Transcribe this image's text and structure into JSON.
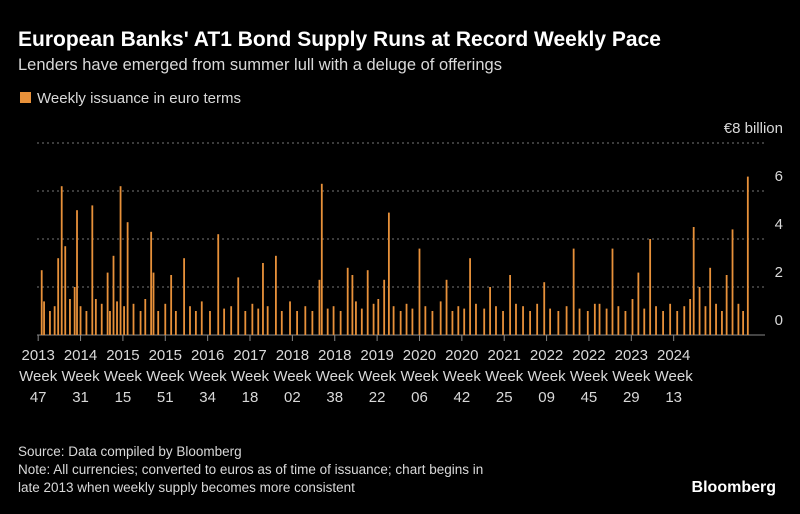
{
  "chart_data": {
    "type": "bar",
    "title": "European Banks' AT1 Bond Supply Runs at Record Weekly Pace",
    "subtitle": "Lenders have emerged from summer lull with a deluge of offerings",
    "source": "Source: Data compiled by Bloomberg",
    "note": [
      "Note: All currencies; converted to euros as of time of issuance; chart begins in",
      "late 2013 when weekly supply becomes more consistent"
    ],
    "brand": "Bloomberg",
    "grid": true,
    "xlim": [
      -1,
      604
    ],
    "xticks": [
      {
        "value": 0,
        "label": [
          "2013",
          "Week",
          "47"
        ]
      },
      {
        "value": 36,
        "label": [
          "2014",
          "Week",
          "31"
        ]
      },
      {
        "value": 72,
        "label": [
          "2015",
          "Week",
          "15"
        ]
      },
      {
        "value": 108,
        "label": [
          "2015",
          "Week",
          "51"
        ]
      },
      {
        "value": 144,
        "label": [
          "2016",
          "Week",
          "34"
        ]
      },
      {
        "value": 180,
        "label": [
          "2017",
          "Week",
          "18"
        ]
      },
      {
        "value": 216,
        "label": [
          "2018",
          "Week",
          "02"
        ]
      },
      {
        "value": 252,
        "label": [
          "2018",
          "Week",
          "38"
        ]
      },
      {
        "value": 288,
        "label": [
          "2019",
          "Week",
          "22"
        ]
      },
      {
        "value": 324,
        "label": [
          "2020",
          "Week",
          "06"
        ]
      },
      {
        "value": 360,
        "label": [
          "2020",
          "Week",
          "42"
        ]
      },
      {
        "value": 396,
        "label": [
          "2021",
          "Week",
          "25"
        ]
      },
      {
        "value": 432,
        "label": [
          "2022",
          "Week",
          "09"
        ]
      },
      {
        "value": 468,
        "label": [
          "2022",
          "Week",
          "45"
        ]
      },
      {
        "value": 504,
        "label": [
          "2023",
          "Week",
          "29"
        ]
      },
      {
        "value": 540,
        "label": [
          "2024",
          "Week",
          "13"
        ]
      }
    ],
    "ylim": [
      0,
      8
    ],
    "yticks": [
      0,
      2,
      4,
      6,
      {
        "value": 8,
        "label": "€8 billion"
      }
    ],
    "x": [
      3,
      5,
      10,
      14,
      17,
      20,
      23,
      27,
      31,
      33,
      36,
      41,
      46,
      49,
      54,
      59,
      61,
      64,
      67,
      70,
      73,
      76,
      81,
      87,
      91,
      96,
      98,
      102,
      108,
      113,
      117,
      124,
      129,
      134,
      139,
      146,
      153,
      158,
      164,
      170,
      176,
      182,
      187,
      191,
      195,
      202,
      207,
      214,
      220,
      227,
      233,
      239,
      241,
      246,
      251,
      257,
      263,
      267,
      270,
      275,
      280,
      285,
      289,
      294,
      298,
      302,
      308,
      313,
      318,
      324,
      329,
      335,
      342,
      347,
      352,
      357,
      362,
      367,
      372,
      379,
      384,
      389,
      395,
      401,
      406,
      412,
      418,
      424,
      430,
      435,
      442,
      449,
      455,
      460,
      467,
      473,
      477,
      483,
      488,
      493,
      499,
      505,
      510,
      515,
      520,
      525,
      531,
      537,
      543,
      549,
      554,
      557,
      562,
      567,
      571,
      576,
      581,
      585,
      590,
      595,
      599,
      603
    ],
    "series": [
      {
        "name": "Weekly issuance in euro terms",
        "color": "#e8913a",
        "values": [
          2.7,
          1.4,
          1.0,
          1.2,
          3.2,
          6.2,
          3.7,
          1.5,
          2.0,
          5.2,
          1.2,
          1.0,
          5.4,
          1.5,
          1.3,
          2.6,
          1.0,
          3.3,
          1.4,
          6.2,
          1.2,
          4.7,
          1.3,
          1.0,
          1.5,
          4.3,
          2.6,
          1.0,
          1.3,
          2.5,
          1.0,
          3.2,
          1.2,
          1.0,
          1.4,
          1.0,
          4.2,
          1.1,
          1.2,
          2.4,
          1.0,
          1.3,
          1.1,
          3.0,
          1.2,
          3.3,
          1.0,
          1.4,
          1.0,
          1.2,
          1.0,
          2.3,
          6.3,
          1.1,
          1.2,
          1.0,
          2.8,
          2.5,
          1.4,
          1.1,
          2.7,
          1.3,
          1.5,
          2.3,
          5.1,
          1.2,
          1.0,
          1.3,
          1.1,
          3.6,
          1.2,
          1.0,
          1.4,
          2.3,
          1.0,
          1.2,
          1.1,
          3.2,
          1.3,
          1.1,
          2.0,
          1.2,
          1.0,
          2.5,
          1.3,
          1.2,
          1.0,
          1.3,
          2.2,
          1.1,
          1.0,
          1.2,
          3.6,
          1.1,
          1.0,
          1.3,
          1.3,
          1.1,
          3.6,
          1.2,
          1.0,
          1.5,
          2.6,
          1.1,
          4.0,
          1.2,
          1.0,
          1.3,
          1.0,
          1.2,
          1.5,
          4.5,
          2.0,
          1.2,
          2.8,
          1.3,
          1.0,
          2.5,
          4.4,
          1.3,
          1.0,
          6.6
        ]
      }
    ]
  }
}
